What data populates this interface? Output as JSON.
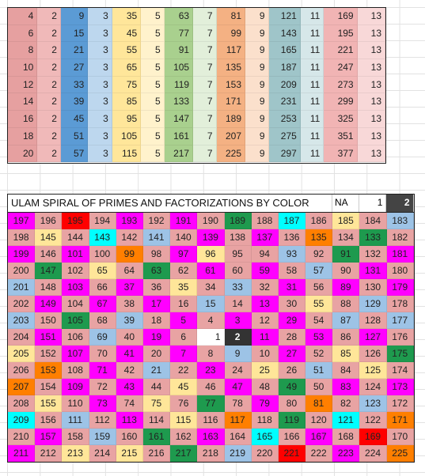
{
  "colors": {
    "c0": "#e6a0a0",
    "c1": "#f0b9b9",
    "c2": "#f8d6d6",
    "c3": "#5b9bd5",
    "c4": "#bdd7ee",
    "c5": "#ffe69a",
    "c6": "#fff2cc",
    "c7": "#a9d08e",
    "c8": "#e2efda",
    "c9": "#f4b183",
    "c10": "#fbe0cc",
    "c11": "#9fc5c9",
    "c12": "#d6e7e9",
    "c13": "#f1b4b4",
    "c14": "#f8d8d8",
    "M": "#ff00ff",
    "A": "#e8a3a3",
    "Y": "#ffe699",
    "B": "#9dc3e6",
    "C": "#00ffff",
    "G": "#1e9a4e",
    "O": "#ff7f00",
    "R": "#ff0000",
    "W": "#ffffff",
    "K": "#333333"
  },
  "top_table": {
    "rows": [
      [
        "4",
        "2",
        "9",
        "3",
        "35",
        "5",
        "63",
        "7",
        "81",
        "9",
        "121",
        "11",
        "169",
        "13"
      ],
      [
        "6",
        "2",
        "15",
        "3",
        "45",
        "5",
        "77",
        "7",
        "99",
        "9",
        "143",
        "11",
        "195",
        "13"
      ],
      [
        "8",
        "2",
        "21",
        "3",
        "55",
        "5",
        "91",
        "7",
        "117",
        "9",
        "165",
        "11",
        "221",
        "13"
      ],
      [
        "10",
        "2",
        "27",
        "3",
        "65",
        "5",
        "105",
        "7",
        "135",
        "9",
        "187",
        "11",
        "247",
        "13"
      ],
      [
        "12",
        "2",
        "33",
        "3",
        "75",
        "5",
        "119",
        "7",
        "153",
        "9",
        "209",
        "11",
        "273",
        "13"
      ],
      [
        "14",
        "2",
        "39",
        "3",
        "85",
        "5",
        "133",
        "7",
        "171",
        "9",
        "231",
        "11",
        "299",
        "13"
      ],
      [
        "16",
        "2",
        "45",
        "3",
        "95",
        "5",
        "147",
        "7",
        "189",
        "9",
        "253",
        "11",
        "325",
        "13"
      ],
      [
        "18",
        "2",
        "51",
        "3",
        "105",
        "5",
        "161",
        "7",
        "207",
        "9",
        "275",
        "11",
        "351",
        "13"
      ],
      [
        "20",
        "2",
        "57",
        "3",
        "115",
        "5",
        "217",
        "7",
        "225",
        "9",
        "297",
        "11",
        "377",
        "13"
      ]
    ],
    "col_colors": [
      "c0",
      "c1",
      "c3",
      "c4",
      "c5",
      "c6",
      "c7",
      "c8",
      "c9",
      "c10",
      "c11",
      "c12",
      "c13",
      "c14"
    ]
  },
  "ulam": {
    "title": "ULAM SPIRAL OF PRIMES AND FACTORIZATIONS BY COLOR",
    "legend": [
      "NA",
      "1",
      "2"
    ],
    "rows": [
      [
        "197",
        "196",
        "195",
        "194",
        "193",
        "192",
        "191",
        "190",
        "189",
        "188",
        "187",
        "186",
        "185",
        "184",
        "183"
      ],
      [
        "198",
        "145",
        "144",
        "143",
        "142",
        "141",
        "140",
        "139",
        "138",
        "137",
        "136",
        "135",
        "134",
        "133",
        "182"
      ],
      [
        "199",
        "146",
        "101",
        "100",
        "99",
        "98",
        "97",
        "96",
        "95",
        "94",
        "93",
        "92",
        "91",
        "132",
        "181"
      ],
      [
        "200",
        "147",
        "102",
        "65",
        "64",
        "63",
        "62",
        "61",
        "60",
        "59",
        "58",
        "57",
        "90",
        "131",
        "180"
      ],
      [
        "201",
        "148",
        "103",
        "66",
        "37",
        "36",
        "35",
        "34",
        "33",
        "32",
        "31",
        "56",
        "89",
        "130",
        "179"
      ],
      [
        "202",
        "149",
        "104",
        "67",
        "38",
        "17",
        "16",
        "15",
        "14",
        "13",
        "30",
        "55",
        "88",
        "129",
        "178"
      ],
      [
        "203",
        "150",
        "105",
        "68",
        "39",
        "18",
        "5",
        "4",
        "3",
        "12",
        "29",
        "54",
        "87",
        "128",
        "177"
      ],
      [
        "204",
        "151",
        "106",
        "69",
        "40",
        "19",
        "6",
        "1",
        "2",
        "11",
        "28",
        "53",
        "86",
        "127",
        "176"
      ],
      [
        "205",
        "152",
        "107",
        "70",
        "41",
        "20",
        "7",
        "8",
        "9",
        "10",
        "27",
        "52",
        "85",
        "126",
        "175"
      ],
      [
        "206",
        "153",
        "108",
        "71",
        "42",
        "21",
        "22",
        "23",
        "24",
        "25",
        "26",
        "51",
        "84",
        "125",
        "174"
      ],
      [
        "207",
        "154",
        "109",
        "72",
        "43",
        "44",
        "45",
        "46",
        "47",
        "48",
        "49",
        "50",
        "83",
        "124",
        "173"
      ],
      [
        "208",
        "155",
        "110",
        "73",
        "74",
        "75",
        "76",
        "77",
        "78",
        "79",
        "80",
        "81",
        "82",
        "123",
        "172"
      ],
      [
        "209",
        "156",
        "111",
        "112",
        "113",
        "114",
        "115",
        "116",
        "117",
        "118",
        "119",
        "120",
        "121",
        "122",
        "171"
      ],
      [
        "210",
        "157",
        "158",
        "159",
        "160",
        "161",
        "162",
        "163",
        "164",
        "165",
        "166",
        "167",
        "168",
        "169",
        "170"
      ],
      [
        "211",
        "212",
        "213",
        "214",
        "215",
        "216",
        "217",
        "218",
        "219",
        "220",
        "221",
        "222",
        "223",
        "224",
        "225"
      ]
    ],
    "cell_colors": [
      [
        "M",
        "A",
        "R",
        "A",
        "M",
        "A",
        "M",
        "A",
        "G",
        "A",
        "C",
        "A",
        "Y",
        "A",
        "B"
      ],
      [
        "A",
        "Y",
        "A",
        "C",
        "A",
        "B",
        "A",
        "M",
        "A",
        "M",
        "A",
        "O",
        "A",
        "G",
        "A"
      ],
      [
        "M",
        "A",
        "M",
        "A",
        "O",
        "A",
        "M",
        "Y",
        "A",
        "A",
        "B",
        "A",
        "G",
        "A",
        "M"
      ],
      [
        "A",
        "G",
        "A",
        "Y",
        "A",
        "G",
        "A",
        "M",
        "A",
        "M",
        "A",
        "B",
        "A",
        "M",
        "A"
      ],
      [
        "B",
        "A",
        "M",
        "A",
        "M",
        "A",
        "Y",
        "A",
        "B",
        "A",
        "M",
        "A",
        "M",
        "A",
        "M"
      ],
      [
        "A",
        "M",
        "A",
        "M",
        "A",
        "M",
        "A",
        "B",
        "A",
        "M",
        "A",
        "Y",
        "A",
        "B",
        "A"
      ],
      [
        "B",
        "A",
        "G",
        "A",
        "B",
        "A",
        "M",
        "A",
        "M",
        "A",
        "M",
        "A",
        "B",
        "A",
        "B"
      ],
      [
        "A",
        "M",
        "A",
        "B",
        "A",
        "M",
        "A",
        "W",
        "K",
        "M",
        "A",
        "M",
        "A",
        "M",
        "A"
      ],
      [
        "Y",
        "A",
        "M",
        "A",
        "M",
        "A",
        "M",
        "A",
        "B",
        "A",
        "M",
        "A",
        "Y",
        "A",
        "G"
      ],
      [
        "A",
        "O",
        "A",
        "M",
        "A",
        "B",
        "A",
        "M",
        "A",
        "Y",
        "A",
        "B",
        "A",
        "Y",
        "A"
      ],
      [
        "O",
        "A",
        "M",
        "A",
        "M",
        "A",
        "Y",
        "A",
        "M",
        "A",
        "G",
        "A",
        "M",
        "A",
        "M"
      ],
      [
        "A",
        "Y",
        "A",
        "M",
        "A",
        "Y",
        "A",
        "G",
        "A",
        "M",
        "A",
        "O",
        "A",
        "B",
        "A"
      ],
      [
        "C",
        "A",
        "B",
        "A",
        "M",
        "A",
        "Y",
        "A",
        "O",
        "A",
        "G",
        "A",
        "C",
        "A",
        "O"
      ],
      [
        "A",
        "M",
        "A",
        "B",
        "A",
        "G",
        "A",
        "M",
        "A",
        "C",
        "A",
        "M",
        "A",
        "R",
        "A"
      ],
      [
        "M",
        "A",
        "Y",
        "A",
        "Y",
        "A",
        "G",
        "A",
        "B",
        "A",
        "R",
        "A",
        "M",
        "A",
        "O"
      ]
    ]
  }
}
